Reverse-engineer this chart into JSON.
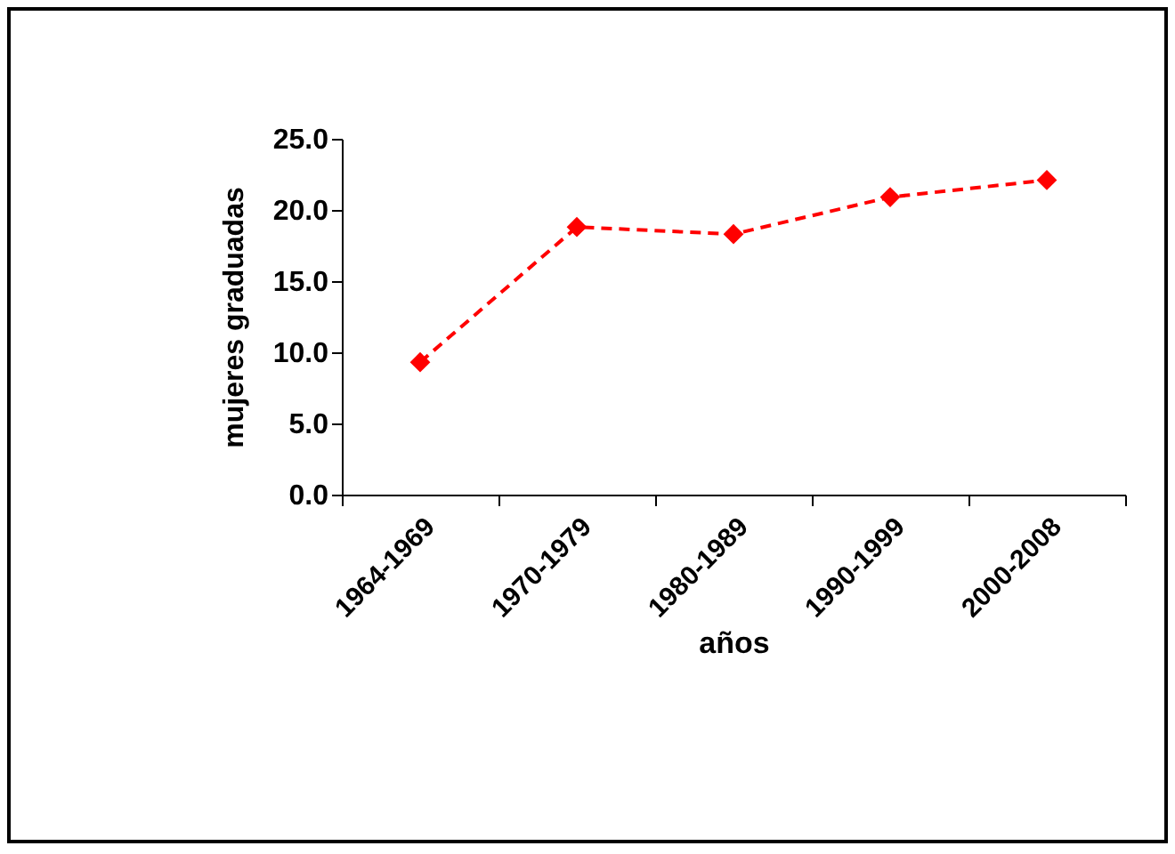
{
  "chart_data": {
    "type": "line",
    "xlabel": "años",
    "ylabel": "mujeres graduadas",
    "categories": [
      "1964-1969",
      "1970-1979",
      "1980-1989",
      "1990-1999",
      "2000-2008"
    ],
    "series": [
      {
        "color": "#ff0000",
        "values": [
          9.3,
          18.8,
          18.3,
          20.9,
          22.1
        ]
      }
    ],
    "ylim": [
      0,
      25
    ],
    "yticks": [
      {
        "value": 0,
        "label": "0.0"
      },
      {
        "value": 5,
        "label": "5.0"
      },
      {
        "value": 10,
        "label": "10.0"
      },
      {
        "value": 15,
        "label": "15.0"
      },
      {
        "value": 20,
        "label": "20.0"
      },
      {
        "value": 25,
        "label": "25.0"
      }
    ],
    "marker": "diamond",
    "line_style": "dashed",
    "grid": false,
    "legend": false
  }
}
